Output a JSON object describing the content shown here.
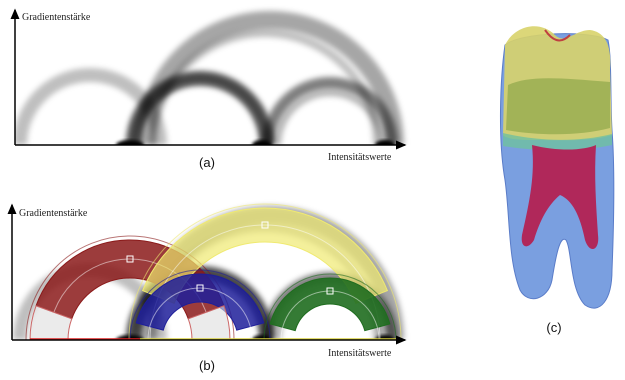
{
  "panels": [
    {
      "y_axis_label": "Gradientenstärke",
      "x_axis_label": "Intensitätswerte",
      "caption": "(a)"
    },
    {
      "y_axis_label": "Gradientenstärke",
      "x_axis_label": "Intensitätswerte",
      "caption": "(b)"
    },
    {
      "caption": "(c)"
    }
  ]
}
